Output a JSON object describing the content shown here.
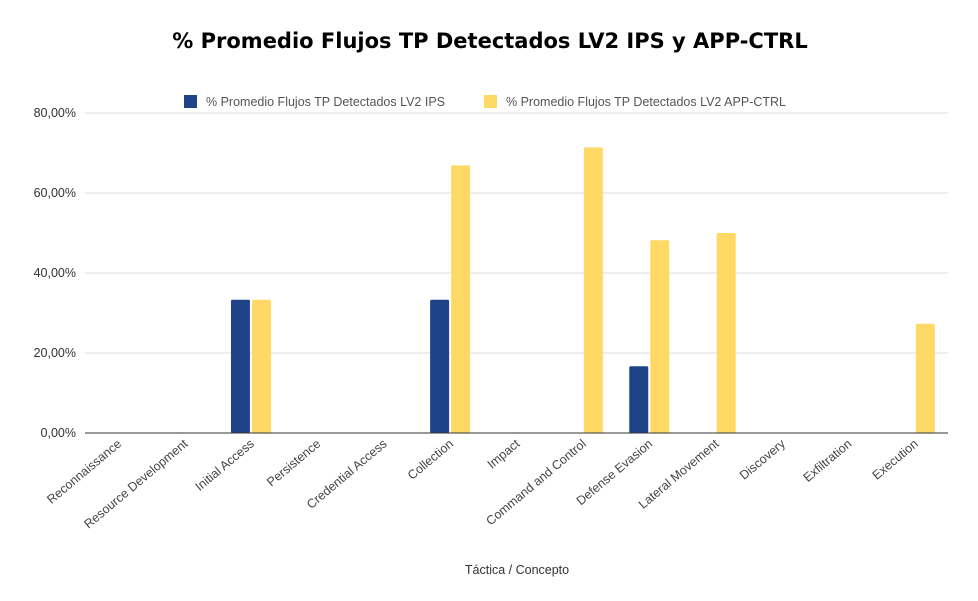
{
  "chart_data": {
    "type": "bar",
    "title": "% Promedio Flujos TP Detectados LV2 IPS y APP-CTRL",
    "xlabel": "Táctica / Concepto",
    "ylabel": "",
    "ylim": [
      0,
      80
    ],
    "yticks": [
      "0,00%",
      "20,00%",
      "40,00%",
      "60,00%",
      "80,00%"
    ],
    "grid": true,
    "legend_position": "top",
    "categories": [
      "Reconnaissance",
      "Resource Development",
      "Initial Access",
      "Persistence",
      "Credential Access",
      "Collection",
      "Impact",
      "Command and Control",
      "Defense Evasion",
      "Lateral Movement",
      "Discovery",
      "Exfiltration",
      "Execution"
    ],
    "series": [
      {
        "name": "% Promedio Flujos TP Detectados LV2 IPS",
        "color": "#1f4389",
        "values": [
          0,
          0,
          33.3,
          0,
          0,
          33.3,
          0,
          0,
          16.7,
          0,
          0,
          0,
          0
        ]
      },
      {
        "name": "% Promedio Flujos TP Detectados LV2 APP-CTRL",
        "color": "#ffd966",
        "values": [
          0,
          0,
          33.3,
          0,
          0,
          66.9,
          0,
          71.4,
          48.2,
          50.0,
          0,
          0,
          27.3
        ]
      }
    ]
  }
}
